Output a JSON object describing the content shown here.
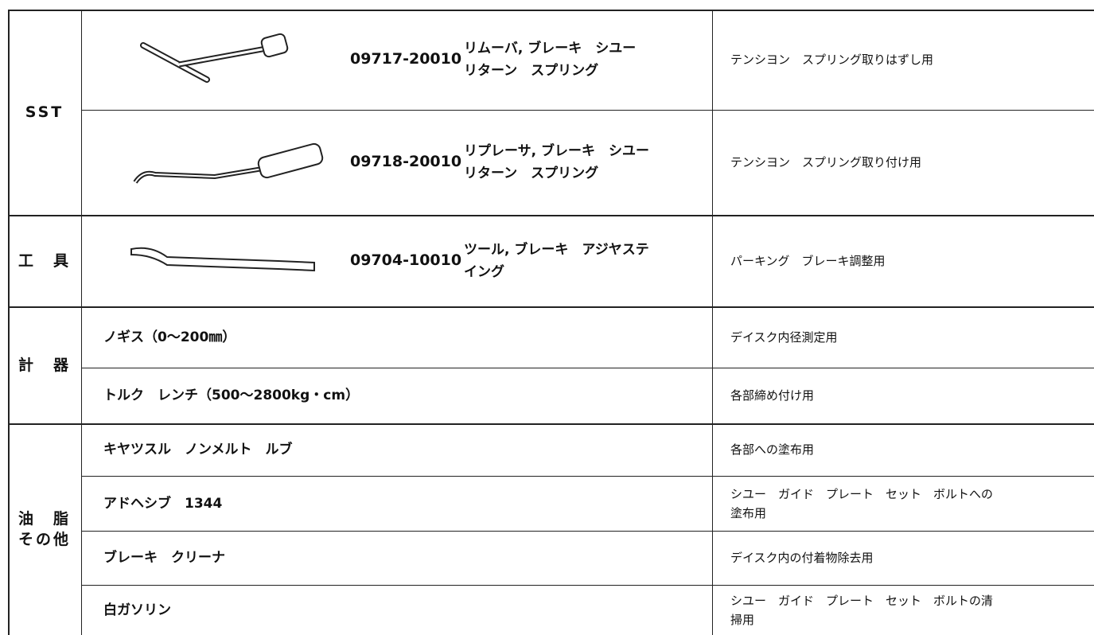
{
  "table": {
    "groups": [
      {
        "label": [
          "SST"
        ],
        "rows": [
          {
            "part_number": "09717-20010",
            "name": [
              "リムーバ, ブレーキ　シユー",
              "リターン　スプリング"
            ],
            "usage": [
              "テンシヨン　スプリング取りはずし用"
            ]
          },
          {
            "part_number": "09718-20010",
            "name": [
              "リプレーサ, ブレーキ　シユー",
              "リターン　スプリング"
            ],
            "usage": [
              "テンシヨン　スプリング取り付け用"
            ]
          }
        ]
      },
      {
        "label": [
          "工　具"
        ],
        "rows": [
          {
            "part_number": "09704-10010",
            "name": [
              "ツール, ブレーキ　アジヤステ",
              "イング"
            ],
            "usage": [
              "パーキング　ブレーキ調整用"
            ]
          }
        ]
      },
      {
        "label": [
          "計　器"
        ],
        "rows": [
          {
            "name": [
              "ノギス（0～200㎜）"
            ],
            "usage": [
              "デイスク内径測定用"
            ]
          },
          {
            "name": [
              "トルク　レンチ（500～2800kg・cm）"
            ],
            "usage": [
              "各部締め付け用"
            ]
          }
        ]
      },
      {
        "label": [
          "油　脂",
          "その他"
        ],
        "rows": [
          {
            "name": [
              "キヤツスル　ノンメルト　ルブ"
            ],
            "usage": [
              "各部への塗布用"
            ]
          },
          {
            "name": [
              "アドヘシブ　1344"
            ],
            "usage": [
              "シユー　ガイド　プレート　セット　ボルトへの",
              "塗布用"
            ]
          },
          {
            "name": [
              "ブレーキ　クリーナ"
            ],
            "usage": [
              "デイスク内の付着物除去用"
            ]
          },
          {
            "name": [
              "白ガソリン"
            ],
            "usage": [
              "シユー　ガイド　プレート　セット　ボルトの清",
              "掃用"
            ]
          }
        ]
      }
    ]
  }
}
